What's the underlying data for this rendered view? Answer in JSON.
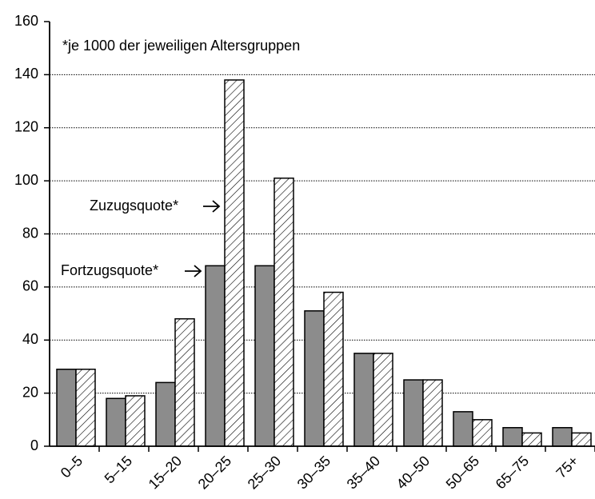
{
  "chart_data": {
    "type": "bar",
    "annotation": "*je 1000 der jeweiligen Altersgruppen",
    "categories": [
      "0–5",
      "5–15",
      "15–20",
      "20–25",
      "25–30",
      "30–35",
      "35–40",
      "40–50",
      "50–65",
      "65–75",
      "75+"
    ],
    "series": [
      {
        "name": "Fortzugsquote*",
        "color": "#8c8c8c",
        "values": [
          29,
          18,
          24,
          68,
          68,
          51,
          35,
          25,
          13,
          7,
          7
        ]
      },
      {
        "name": "Zuzugsquote*",
        "color": "hatch",
        "values": [
          29,
          19,
          48,
          138,
          101,
          58,
          35,
          25,
          10,
          5,
          5
        ]
      }
    ],
    "ylim": [
      0,
      160
    ],
    "yticks": [
      0,
      20,
      40,
      60,
      80,
      100,
      120,
      140,
      160
    ],
    "grid": true
  }
}
